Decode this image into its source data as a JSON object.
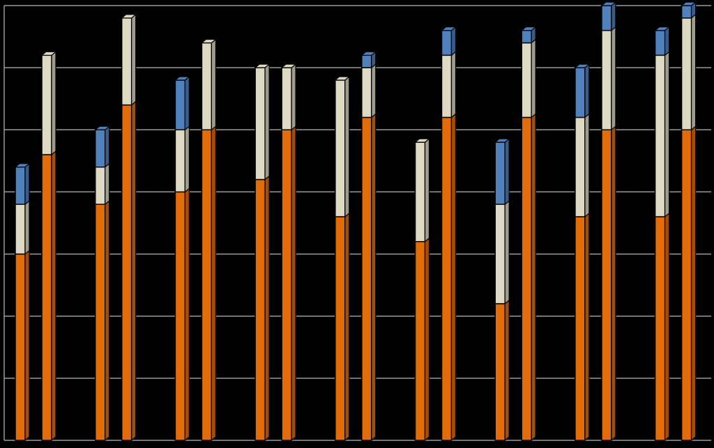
{
  "chart_data": {
    "type": "bar",
    "stacked": true,
    "three_d": true,
    "title": "",
    "xlabel": "",
    "ylabel": "",
    "ylim": [
      0,
      7
    ],
    "grid": true,
    "legend": "none",
    "gridline_color": "#9a9a9a",
    "series_colors": [
      "#e36c0a",
      "#ddd9c3",
      "#4f81bd"
    ],
    "bars": [
      {
        "values": [
          3.0,
          0.8,
          0.6
        ]
      },
      {
        "values": [
          4.6,
          1.6,
          0.0
        ]
      },
      {
        "values": [
          3.8,
          0.6,
          0.6
        ]
      },
      {
        "values": [
          5.4,
          1.4,
          0.0
        ]
      },
      {
        "values": [
          4.0,
          1.0,
          0.8
        ]
      },
      {
        "values": [
          5.0,
          1.4,
          0.0
        ]
      },
      {
        "values": [
          4.2,
          1.8,
          0.0
        ]
      },
      {
        "values": [
          5.0,
          1.0,
          0.0
        ]
      },
      {
        "values": [
          3.6,
          2.2,
          0.0
        ]
      },
      {
        "values": [
          5.2,
          0.8,
          0.2
        ]
      },
      {
        "values": [
          3.2,
          1.6,
          0.0
        ]
      },
      {
        "values": [
          5.2,
          1.0,
          0.4
        ]
      },
      {
        "values": [
          2.2,
          1.6,
          1.0
        ]
      },
      {
        "values": [
          5.2,
          1.2,
          0.2
        ]
      },
      {
        "values": [
          3.6,
          1.6,
          0.8
        ]
      },
      {
        "values": [
          5.0,
          1.6,
          0.4
        ]
      },
      {
        "values": [
          3.6,
          2.6,
          0.4
        ]
      },
      {
        "values": [
          5.0,
          1.8,
          0.2
        ]
      }
    ]
  }
}
